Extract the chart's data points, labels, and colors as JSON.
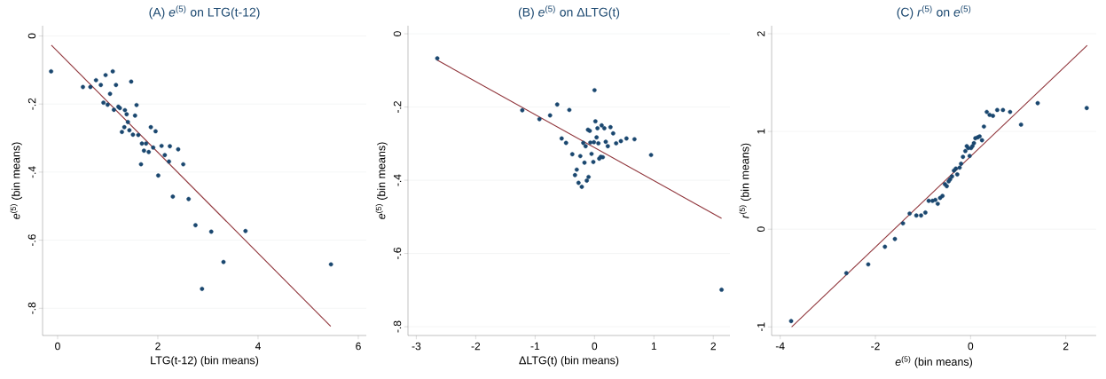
{
  "chart_data": [
    {
      "type": "scatter",
      "title": "(A) *e*$^{(5)}$ on LTG(t-12)",
      "xlabel": "LTG(t-12) (bin means)",
      "ylabel": "*e*$^{(5)}$ (bin means)",
      "xlim": [
        -0.3,
        6.16
      ],
      "ylim": [
        -0.88,
        0.03
      ],
      "xticks": [
        0,
        2,
        4,
        6
      ],
      "yticks": [
        0,
        {
          "value": -0.2,
          "label": "-.2"
        },
        {
          "value": -0.4,
          "label": "-.4"
        },
        {
          "value": -0.6,
          "label": "-.6"
        },
        {
          "value": -0.8,
          "label": "-.8"
        }
      ],
      "grid": "y",
      "series": [
        {
          "color": "#1a476f",
          "marker": "circle",
          "x": [
            -0.13,
            0.505,
            0.654,
            0.766,
            0.862,
            0.957,
            1.1,
            1.165,
            1.046,
            0.915,
            0.998,
            1.123,
            1.212,
            1.242,
            1.343,
            1.378,
            1.468,
            1.575,
            1.545,
            1.402,
            1.331,
            1.283,
            1.432,
            1.503,
            1.61,
            1.86,
            1.955,
            1.682,
            1.765,
            1.723,
            1.818,
            1.907,
            2.074,
            2.24,
            2.406,
            2.139,
            2.222,
            2.507,
            1.664,
            2.008,
            2.299,
            2.614,
            2.751,
            3.066,
            3.749,
            3.31,
            2.882,
            5.455
          ],
          "values": [
            -0.104,
            -0.15,
            -0.15,
            -0.13,
            -0.144,
            -0.115,
            -0.104,
            -0.144,
            -0.17,
            -0.196,
            -0.202,
            -0.217,
            -0.208,
            -0.212,
            -0.218,
            -0.23,
            -0.134,
            -0.203,
            -0.234,
            -0.253,
            -0.268,
            -0.282,
            -0.277,
            -0.29,
            -0.291,
            -0.268,
            -0.28,
            -0.316,
            -0.316,
            -0.337,
            -0.341,
            -0.328,
            -0.323,
            -0.324,
            -0.333,
            -0.35,
            -0.369,
            -0.377,
            -0.377,
            -0.41,
            -0.472,
            -0.479,
            -0.556,
            -0.575,
            -0.573,
            -0.664,
            -0.743,
            -0.671
          ]
        },
        {
          "type": "line",
          "color": "#90353b",
          "marker": "none",
          "line_style": "solid",
          "x": [
            -0.125,
            5.449
          ],
          "values": [
            -0.027,
            -0.853
          ]
        }
      ]
    },
    {
      "type": "scatter",
      "title": "(B) *e*$^{(5)}$ on ΔLTG(t)",
      "xlabel": "ΔLTG(t) (bin means)",
      "ylabel": "*e*$^{(5)}$ (bin means)",
      "xlim": [
        -3.14,
        2.28
      ],
      "ylim": [
        -0.824,
        0.022
      ],
      "xticks": [
        -3,
        -2,
        -1,
        0,
        1,
        2
      ],
      "yticks": [
        0,
        {
          "value": -0.2,
          "label": "-.2"
        },
        {
          "value": -0.4,
          "label": "-.4"
        },
        {
          "value": -0.6,
          "label": "-.6"
        },
        {
          "value": -0.8,
          "label": "-.8"
        }
      ],
      "grid": "y",
      "series": [
        {
          "color": "#1a476f",
          "marker": "circle",
          "x": [
            -2.647,
            -1.216,
            -0.927,
            -0.748,
            -0.628,
            -0.424,
            0.0,
            -0.553,
            -0.479,
            -0.374,
            -0.239,
            -0.169,
            -0.299,
            -0.329,
            -0.269,
            -0.214,
            -0.13,
            -0.1,
            -0.02,
            -0.05,
            -0.189,
            -0.15,
            -0.07,
            -0.01,
            0.065,
            0.035,
            -0.11,
            -0.08,
            0.015,
            0.05,
            0.12,
            0.165,
            0.269,
            0.314,
            0.189,
            0.224,
            0.364,
            0.444,
            0.538,
            0.673,
            0.952,
            0.08,
            0.105,
            0.14,
            2.139
          ],
          "values": [
            -0.067,
            -0.209,
            -0.233,
            -0.223,
            -0.193,
            -0.208,
            -0.154,
            -0.286,
            -0.298,
            -0.329,
            -0.334,
            -0.352,
            -0.371,
            -0.386,
            -0.407,
            -0.418,
            -0.401,
            -0.391,
            -0.35,
            -0.328,
            -0.298,
            -0.307,
            -0.297,
            -0.296,
            -0.299,
            -0.283,
            -0.262,
            -0.265,
            -0.239,
            -0.258,
            -0.25,
            -0.258,
            -0.255,
            -0.272,
            -0.295,
            -0.307,
            -0.299,
            -0.293,
            -0.286,
            -0.288,
            -0.331,
            -0.341,
            -0.336,
            -0.337,
            -0.699
          ]
        },
        {
          "type": "line",
          "color": "#90353b",
          "marker": "none",
          "line_style": "solid",
          "x": [
            -2.647,
            2.139
          ],
          "values": [
            -0.072,
            -0.504
          ]
        }
      ]
    },
    {
      "type": "scatter",
      "title": "(C) *r*$^{(5)}$ on *e*$^{(5)}$",
      "xlabel": "*e*$^{(5)}$ (bin means)",
      "ylabel": "*r*$^{(5)}$ (bin means)",
      "xlim": [
        -4.18,
        2.64
      ],
      "ylim": [
        -1.088,
        2.082
      ],
      "xticks": [
        -4,
        -2,
        0,
        2
      ],
      "yticks": [
        -1,
        0,
        1,
        2
      ],
      "grid": "y",
      "series": [
        {
          "color": "#1a476f",
          "marker": "circle",
          "x": [
            -3.77,
            -2.61,
            -2.15,
            -1.8,
            -1.59,
            -1.42,
            -1.28,
            -1.14,
            -1.04,
            -0.95,
            -0.88,
            -0.8,
            -0.74,
            -0.69,
            -0.64,
            -0.59,
            -0.54,
            -0.5,
            -0.46,
            -0.43,
            -0.39,
            -0.35,
            -0.31,
            -0.28,
            -0.23,
            -0.2,
            -0.16,
            -0.11,
            -0.08,
            -0.05,
            -0.02,
            0.01,
            0.04,
            0.07,
            0.1,
            0.15,
            0.19,
            0.24,
            0.28,
            0.34,
            0.4,
            0.47,
            0.56,
            0.68,
            0.83,
            1.06,
            1.41,
            2.44
          ],
          "values": [
            -0.94,
            -0.45,
            -0.36,
            -0.18,
            -0.1,
            0.06,
            0.16,
            0.14,
            0.14,
            0.17,
            0.29,
            0.29,
            0.3,
            0.26,
            0.32,
            0.34,
            0.46,
            0.44,
            0.49,
            0.51,
            0.54,
            0.6,
            0.62,
            0.56,
            0.63,
            0.67,
            0.74,
            0.8,
            0.85,
            0.83,
            0.75,
            0.83,
            0.85,
            0.88,
            0.93,
            0.94,
            0.95,
            0.91,
            1.05,
            1.2,
            1.17,
            1.16,
            1.22,
            1.22,
            1.2,
            1.07,
            1.29,
            1.24
          ]
        },
        {
          "type": "line",
          "color": "#90353b",
          "marker": "none",
          "line_style": "solid",
          "x": [
            -3.76,
            2.45
          ],
          "values": [
            -1.0,
            1.88
          ]
        }
      ]
    }
  ]
}
